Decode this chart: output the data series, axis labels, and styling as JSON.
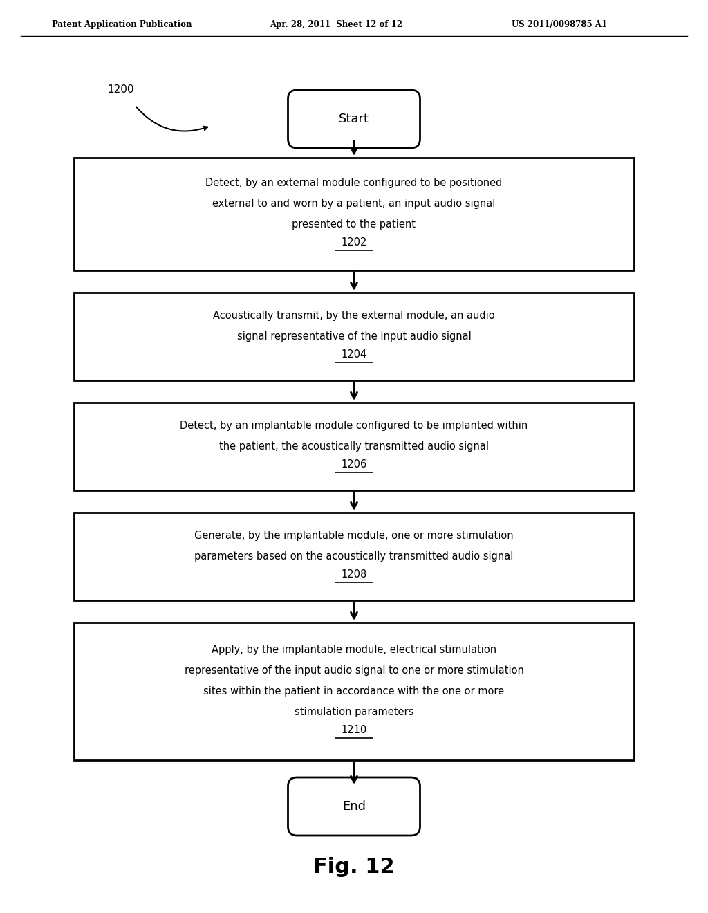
{
  "header_left": "Patent Application Publication",
  "header_mid": "Apr. 28, 2011  Sheet 12 of 12",
  "header_right": "US 2011/0098785 A1",
  "fig_label": "Fig. 12",
  "diagram_label": "1200",
  "start_text": "Start",
  "end_text": "End",
  "boxes": [
    {
      "lines": [
        "Detect, by an external module configured to be positioned",
        "external to and worn by a patient, an input audio signal",
        "presented to the patient"
      ],
      "ref": "1202"
    },
    {
      "lines": [
        "Acoustically transmit, by the external module, an audio",
        "signal representative of the input audio signal"
      ],
      "ref": "1204"
    },
    {
      "lines": [
        "Detect, by an implantable module configured to be implanted within",
        "the patient, the acoustically transmitted audio signal"
      ],
      "ref": "1206"
    },
    {
      "lines": [
        "Generate, by the implantable module, one or more stimulation",
        "parameters based on the acoustically transmitted audio signal"
      ],
      "ref": "1208"
    },
    {
      "lines": [
        "Apply, by the implantable module, electrical stimulation",
        "representative of the input audio signal to one or more stimulation",
        "sites within the patient in accordance with the one or more",
        "stimulation parameters"
      ],
      "ref": "1210"
    }
  ],
  "bg_color": "#ffffff",
  "box_color": "#000000",
  "text_color": "#000000",
  "arrow_color": "#000000"
}
